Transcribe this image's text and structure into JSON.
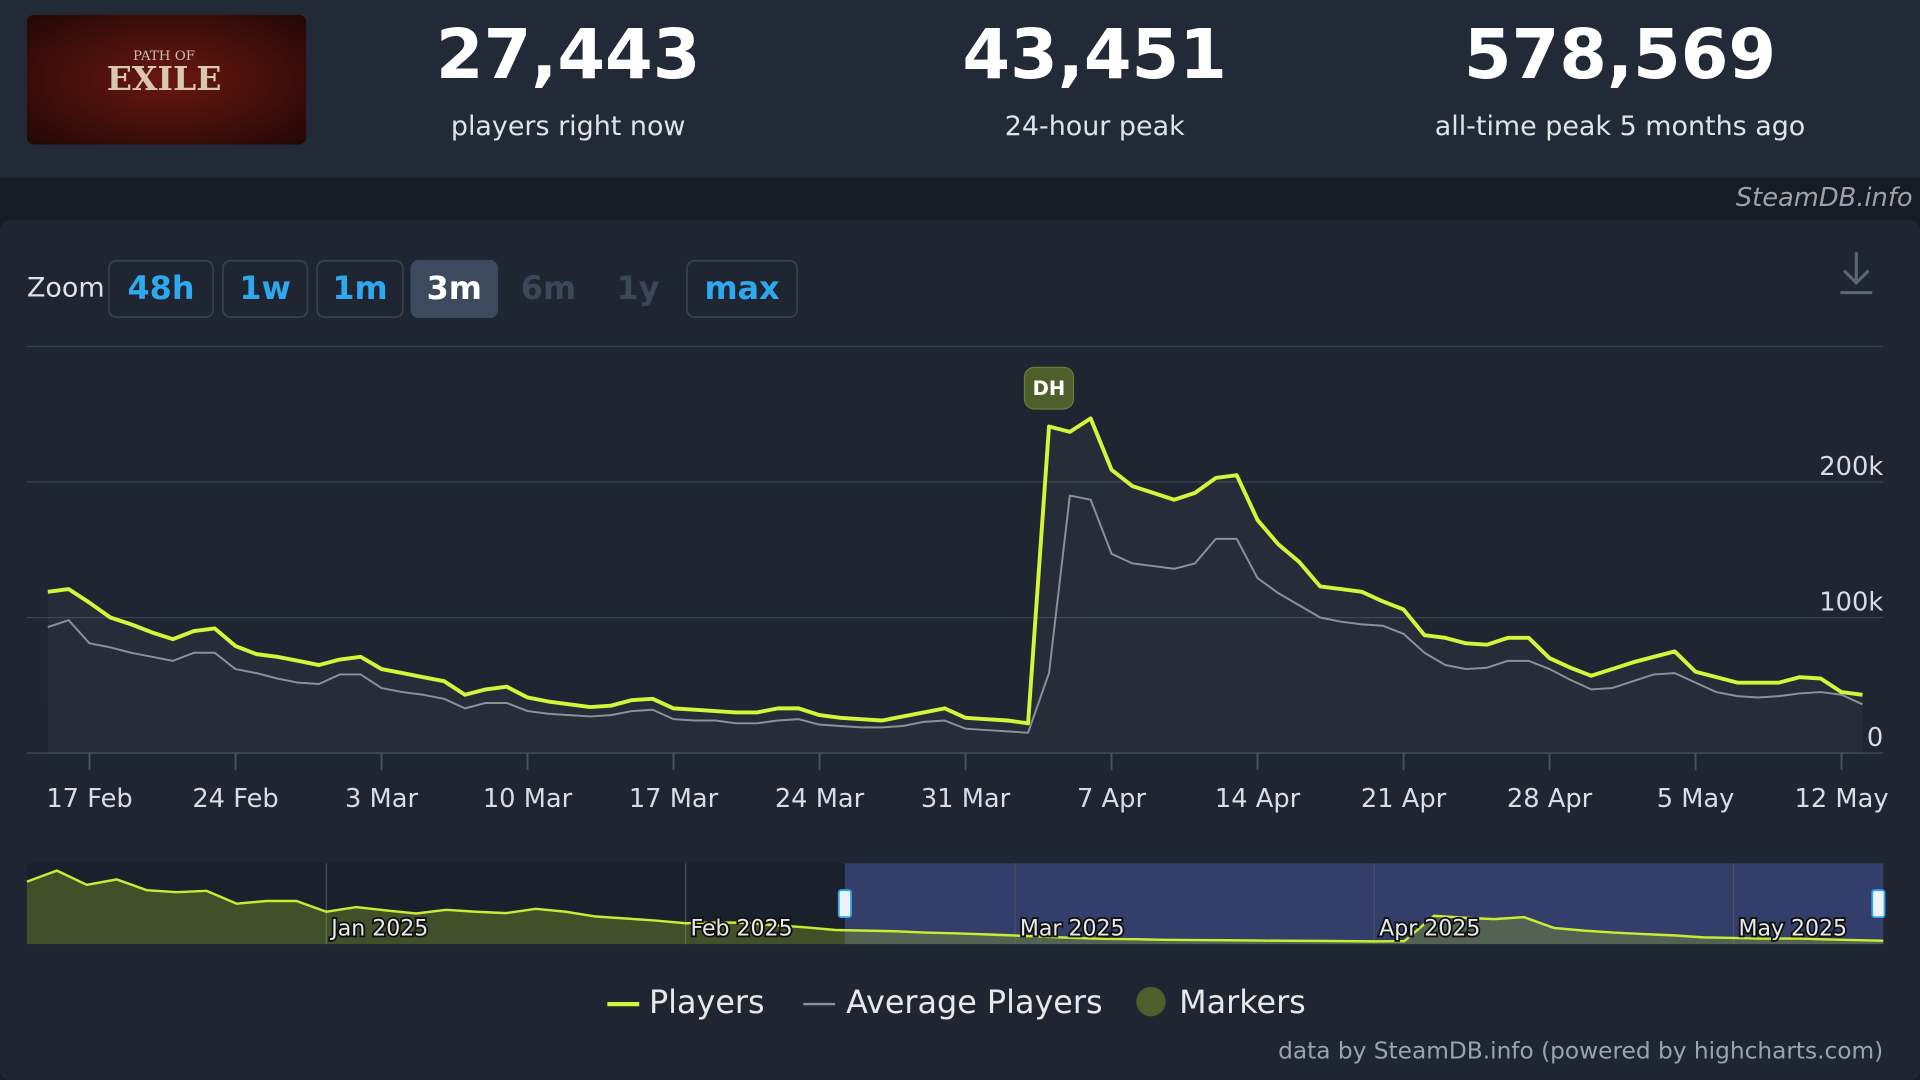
{
  "logo": {
    "top": "PATH OF",
    "main": "EXILE"
  },
  "stats": [
    {
      "value": "27,443",
      "label": "players right now"
    },
    {
      "value": "43,451",
      "label": "24-hour peak"
    },
    {
      "value": "578,569",
      "label": "all-time peak 5 months ago"
    }
  ],
  "credit": "SteamDB.info",
  "zoom": {
    "label": "Zoom",
    "buttons": [
      "48h",
      "1w",
      "1m",
      "3m",
      "6m",
      "1y",
      "max"
    ],
    "selected": "3m",
    "disabled": [
      "6m",
      "1y"
    ]
  },
  "chart_data": [
    {
      "type": "line",
      "x": [
        "15 Feb",
        "16 Feb",
        "17 Feb",
        "18 Feb",
        "19 Feb",
        "20 Feb",
        "21 Feb",
        "22 Feb",
        "23 Feb",
        "24 Feb",
        "25 Feb",
        "26 Feb",
        "27 Feb",
        "28 Feb",
        "1 Mar",
        "2 Mar",
        "3 Mar",
        "4 Mar",
        "5 Mar",
        "6 Mar",
        "7 Mar",
        "8 Mar",
        "9 Mar",
        "10 Mar",
        "11 Mar",
        "12 Mar",
        "13 Mar",
        "14 Mar",
        "15 Mar",
        "16 Mar",
        "17 Mar",
        "18 Mar",
        "19 Mar",
        "20 Mar",
        "21 Mar",
        "22 Mar",
        "23 Mar",
        "24 Mar",
        "25 Mar",
        "26 Mar",
        "27 Mar",
        "28 Mar",
        "29 Mar",
        "30 Mar",
        "31 Mar",
        "1 Apr",
        "2 Apr",
        "3 Apr",
        "4 Apr",
        "5 Apr",
        "6 Apr",
        "7 Apr",
        "8 Apr",
        "9 Apr",
        "10 Apr",
        "11 Apr",
        "12 Apr",
        "13 Apr",
        "14 Apr",
        "15 Apr",
        "16 Apr",
        "17 Apr",
        "18 Apr",
        "19 Apr",
        "20 Apr",
        "21 Apr",
        "22 Apr",
        "23 Apr",
        "24 Apr",
        "25 Apr",
        "26 Apr",
        "27 Apr",
        "28 Apr",
        "29 Apr",
        "30 Apr",
        "1 May",
        "2 May",
        "3 May",
        "4 May",
        "5 May",
        "6 May",
        "7 May",
        "8 May",
        "9 May",
        "10 May",
        "11 May",
        "12 May",
        "13 May"
      ],
      "series": [
        {
          "name": "Players",
          "color": "#d4f53a",
          "values": [
            119000,
            121000,
            111000,
            100000,
            95000,
            89000,
            84000,
            90000,
            92000,
            79000,
            73000,
            71000,
            68000,
            65000,
            69000,
            71000,
            62000,
            59000,
            56000,
            53000,
            43000,
            47000,
            49000,
            41000,
            38000,
            36000,
            34000,
            35000,
            39000,
            40000,
            33000,
            32000,
            31000,
            30000,
            30000,
            33000,
            33000,
            28000,
            26000,
            25000,
            24000,
            27000,
            30000,
            33000,
            26000,
            25000,
            24000,
            22000,
            241000,
            237000,
            247000,
            209000,
            197000,
            192000,
            187000,
            192000,
            203000,
            205000,
            172000,
            154000,
            141000,
            123000,
            121000,
            119000,
            112000,
            106000,
            87000,
            85000,
            81000,
            80000,
            85000,
            85000,
            70000,
            63000,
            57000,
            62000,
            67000,
            71000,
            75000,
            60000,
            56000,
            52000,
            52000,
            52000,
            56000,
            55000,
            45000,
            43000
          ]
        },
        {
          "name": "Average Players",
          "color": "#8c9199",
          "values": [
            93000,
            98000,
            81000,
            78000,
            74000,
            71000,
            68000,
            74000,
            74000,
            62000,
            59000,
            55000,
            52000,
            51000,
            58000,
            58000,
            48000,
            45000,
            43000,
            40000,
            33000,
            37000,
            37000,
            31000,
            29000,
            28000,
            27000,
            28000,
            31000,
            32000,
            25000,
            24000,
            24000,
            22000,
            22000,
            24000,
            25000,
            21000,
            20000,
            19000,
            19000,
            20000,
            23000,
            24000,
            18000,
            17000,
            16000,
            15000,
            59000,
            190000,
            187000,
            147000,
            140000,
            138000,
            136000,
            140000,
            158000,
            158000,
            129000,
            118000,
            109000,
            100000,
            97000,
            95000,
            94000,
            88000,
            74000,
            65000,
            62000,
            63000,
            68000,
            68000,
            62000,
            54000,
            47000,
            48000,
            53000,
            58000,
            59000,
            52000,
            45000,
            42000,
            41000,
            42000,
            44000,
            45000,
            43000,
            36000
          ]
        }
      ],
      "markers": {
        "name": "Markers",
        "color": "#4f5f2b",
        "items": [
          {
            "x": "4 Apr",
            "label": "DH"
          }
        ]
      },
      "xlim": [
        "14 Feb",
        "14 May"
      ],
      "xticks": [
        "17 Feb",
        "24 Feb",
        "3 Mar",
        "10 Mar",
        "17 Mar",
        "24 Mar",
        "31 Mar",
        "7 Apr",
        "14 Apr",
        "21 Apr",
        "28 Apr",
        "5 May",
        "12 May"
      ],
      "ylim": [
        0,
        300000
      ],
      "yticks": [
        0,
        {
          "value": 100000,
          "label": "100k"
        },
        {
          "value": 200000,
          "label": "200k"
        }
      ],
      "grid": true,
      "legend": "bottom",
      "credit": "data by SteamDB.info (powered by highcharts.com)"
    },
    {
      "type": "area",
      "categories": [
        null,
        null,
        null,
        null,
        null,
        null,
        null,
        null,
        null,
        null,
        "Jan 2025",
        null,
        null,
        null,
        null,
        null,
        null,
        null,
        null,
        null,
        null,
        null,
        "Feb 2025",
        null,
        null,
        null,
        null,
        null,
        null,
        null,
        null,
        null,
        null,
        "Mar 2025",
        null,
        null,
        null,
        null,
        null,
        null,
        null,
        null,
        null,
        null,
        null,
        "Apr 2025",
        null,
        null,
        null,
        null,
        null,
        null,
        null,
        null,
        null,
        null,
        null,
        "May 2025",
        null,
        null,
        null,
        null,
        null
      ],
      "values": [
        464000,
        545000,
        440000,
        480000,
        400000,
        385000,
        395000,
        300000,
        320000,
        320000,
        240000,
        275000,
        250000,
        227000,
        255000,
        240000,
        230000,
        262000,
        240000,
        205000,
        190000,
        175000,
        155000,
        160000,
        158000,
        140000,
        125000,
        105000,
        100000,
        95000,
        85000,
        80000,
        72000,
        64000,
        55000,
        45000,
        38000,
        36000,
        32000,
        30000,
        28000,
        26000,
        25000,
        24000,
        22000,
        20000,
        22000,
        210000,
        195000,
        185000,
        200000,
        120000,
        100000,
        85000,
        75000,
        65000,
        50000,
        45000,
        40000,
        42000,
        35000,
        30000,
        25000
      ],
      "color": "#c8ec34",
      "ylim": [
        0,
        600000
      ]
    }
  ]
}
